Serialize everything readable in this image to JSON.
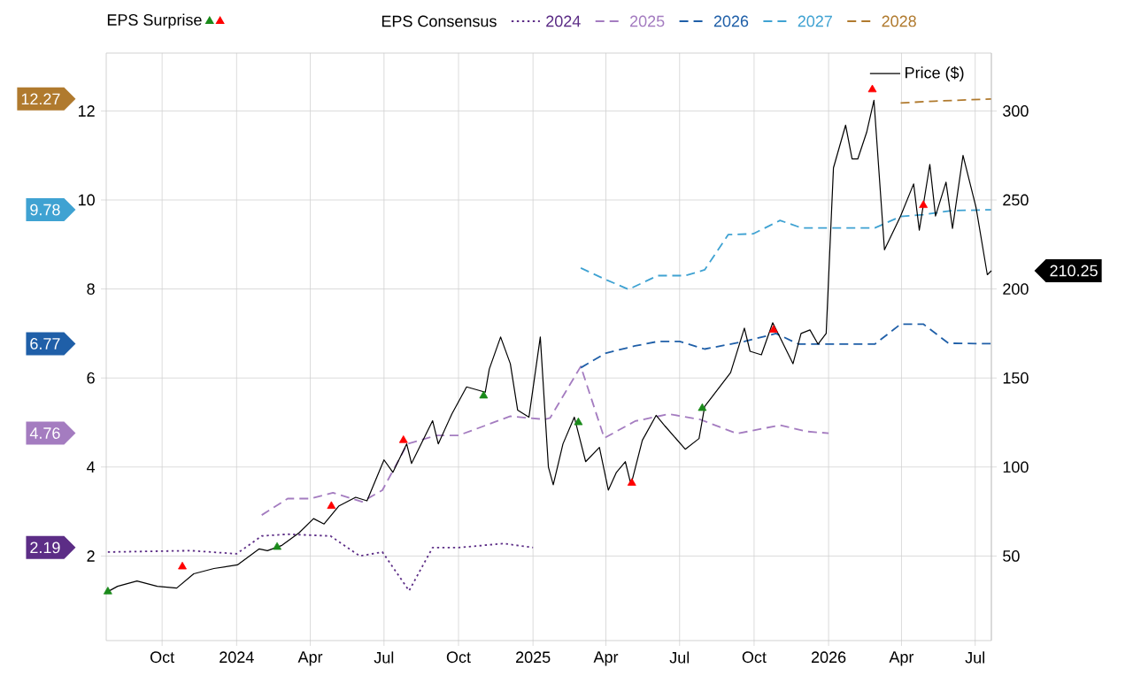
{
  "chart_data": {
    "type": "line",
    "xlim": [
      "2023-07-24",
      "2026-07-21"
    ],
    "xticks": [
      {
        "value": "2023-10-01",
        "label": "Oct"
      },
      {
        "value": "2024-01-01",
        "label": "2024"
      },
      {
        "value": "2024-04-01",
        "label": "Apr"
      },
      {
        "value": "2024-07-01",
        "label": "Jul"
      },
      {
        "value": "2024-10-01",
        "label": "Oct"
      },
      {
        "value": "2025-01-01",
        "label": "2025"
      },
      {
        "value": "2025-04-01",
        "label": "Apr"
      },
      {
        "value": "2025-07-01",
        "label": "Jul"
      },
      {
        "value": "2025-10-01",
        "label": "Oct"
      },
      {
        "value": "2026-01-01",
        "label": "2026"
      },
      {
        "value": "2026-04-01",
        "label": "Apr"
      },
      {
        "value": "2026-07-01",
        "label": "Jul"
      }
    ],
    "ylim": [
      0.1,
      13.3
    ],
    "yticks": [
      2,
      4,
      6,
      8,
      10,
      12
    ],
    "y2lim": [
      2.5,
      332.5
    ],
    "y2ticks": [
      50,
      100,
      150,
      200,
      250,
      300
    ],
    "grid": true,
    "legend": "top",
    "marker": "none",
    "series": [
      {
        "name": "2024",
        "color": "#5c2d86",
        "line_style": "dotted",
        "x": [
          "2023-07-26",
          "2023-11-06",
          "2024-01-01",
          "2024-02-01",
          "2024-03-04",
          "2024-04-26",
          "2024-06-01",
          "2024-06-29",
          "2024-08-01",
          "2024-08-30",
          "2024-10-01",
          "2024-11-26",
          "2025-01-01"
        ],
        "values": [
          2.09,
          2.12,
          2.05,
          2.45,
          2.49,
          2.45,
          2.0,
          2.09,
          1.22,
          2.19,
          2.19,
          2.28,
          2.19
        ]
      },
      {
        "name": "2025",
        "color": "#a47cc0",
        "line_style": "dashed",
        "x": [
          "2024-02-01",
          "2024-03-04",
          "2024-04-01",
          "2024-04-29",
          "2024-06-04",
          "2024-06-29",
          "2024-07-30",
          "2024-09-04",
          "2024-10-01",
          "2024-12-04",
          "2025-01-15",
          "2025-01-22",
          "2025-03-01",
          "2025-03-30",
          "2025-05-07",
          "2025-06-18",
          "2025-07-26",
          "2025-09-10",
          "2025-11-02",
          "2025-12-04",
          "2026-01-01"
        ],
        "values": [
          2.92,
          3.29,
          3.29,
          3.42,
          3.22,
          3.48,
          4.52,
          4.71,
          4.71,
          5.14,
          5.07,
          5.1,
          6.26,
          4.65,
          5.03,
          5.19,
          5.07,
          4.75,
          4.94,
          4.8,
          4.76
        ]
      },
      {
        "name": "2026",
        "color": "#1f5fa8",
        "line_style": "dashed",
        "x": [
          "2025-03-01",
          "2025-04-01",
          "2025-05-07",
          "2025-06-04",
          "2025-07-01",
          "2025-08-01",
          "2025-09-19",
          "2025-10-28",
          "2025-11-25",
          "2026-02-27",
          "2026-03-31",
          "2026-04-28",
          "2026-05-29",
          "2026-07-21"
        ],
        "values": [
          6.23,
          6.56,
          6.72,
          6.82,
          6.82,
          6.65,
          6.82,
          7.0,
          6.76,
          6.76,
          7.21,
          7.21,
          6.78,
          6.77
        ]
      },
      {
        "name": "2027",
        "color": "#3fa2d2",
        "line_style": "dashed",
        "x": [
          "2025-03-01",
          "2025-04-01",
          "2025-04-29",
          "2025-06-04",
          "2025-07-08",
          "2025-08-01",
          "2025-08-30",
          "2025-09-30",
          "2025-11-02",
          "2025-11-29",
          "2026-02-27",
          "2026-03-31",
          "2026-04-28",
          "2026-06-02",
          "2026-07-21"
        ],
        "values": [
          8.47,
          8.21,
          7.99,
          8.3,
          8.3,
          8.43,
          9.22,
          9.24,
          9.54,
          9.37,
          9.37,
          9.63,
          9.67,
          9.76,
          9.78
        ]
      },
      {
        "name": "2028",
        "color": "#b07a2e",
        "line_style": "dashed",
        "x": [
          "2026-03-31",
          "2026-05-12",
          "2026-07-21"
        ],
        "values": [
          12.18,
          12.22,
          12.27
        ]
      },
      {
        "name": "Price ($)",
        "color": "#000000",
        "line_style": "solid",
        "axis": "y2",
        "x": [
          "2023-07-26",
          "2023-08-07",
          "2023-08-31",
          "2023-09-25",
          "2023-10-19",
          "2023-11-09",
          "2023-12-04",
          "2024-01-02",
          "2024-01-29",
          "2024-02-08",
          "2024-02-26",
          "2024-03-18",
          "2024-04-05",
          "2024-04-18",
          "2024-05-06",
          "2024-05-27",
          "2024-06-10",
          "2024-07-01",
          "2024-07-12",
          "2024-07-29",
          "2024-08-04",
          "2024-08-30",
          "2024-09-06",
          "2024-09-23",
          "2024-10-11",
          "2024-11-03",
          "2024-11-08",
          "2024-11-22",
          "2024-12-04",
          "2024-12-13",
          "2024-12-27",
          "2025-01-10",
          "2025-01-20",
          "2025-01-26",
          "2025-02-07",
          "2025-02-21",
          "2025-03-07",
          "2025-03-24",
          "2025-04-04",
          "2025-04-14",
          "2025-04-25",
          "2025-05-02",
          "2025-05-16",
          "2025-06-02",
          "2025-06-13",
          "2025-07-08",
          "2025-07-25",
          "2025-08-01",
          "2025-09-02",
          "2025-09-19",
          "2025-09-26",
          "2025-10-10",
          "2025-10-24",
          "2025-11-04",
          "2025-11-18",
          "2025-11-28",
          "2025-12-09",
          "2025-12-19",
          "2025-12-29",
          "2026-01-07",
          "2026-01-22",
          "2026-01-30",
          "2026-02-06",
          "2026-02-17",
          "2026-02-26",
          "2026-03-11",
          "2026-03-31",
          "2026-04-16",
          "2026-04-23",
          "2026-05-06",
          "2026-05-13",
          "2026-05-26",
          "2026-06-03",
          "2026-06-16",
          "2026-07-02",
          "2026-07-16",
          "2026-07-21"
        ],
        "values": [
          30,
          33,
          36,
          33,
          32,
          40,
          43,
          45,
          54,
          53,
          56,
          63,
          71,
          68,
          78,
          83,
          81,
          104,
          97,
          113,
          102,
          126,
          113,
          130,
          145,
          142,
          155,
          173,
          158,
          132,
          128,
          173,
          100,
          90,
          113,
          128,
          103,
          111,
          87,
          97,
          103,
          90,
          115,
          129,
          123,
          110,
          116,
          134,
          153,
          178,
          165,
          163,
          181,
          171,
          158,
          175,
          177,
          169,
          175,
          268,
          292,
          273,
          273,
          288,
          306,
          222,
          241,
          259,
          233,
          270,
          241,
          260,
          234,
          275,
          246,
          208,
          210.25
        ]
      },
      {
        "type": "scatter",
        "marker": "triangle",
        "color": "#1a8a1a",
        "axis": "y2",
        "x": [
          "2023-07-26",
          "2024-02-20",
          "2024-11-01",
          "2025-02-26",
          "2025-07-29"
        ],
        "values": [
          30,
          55,
          140,
          125,
          133
        ]
      },
      {
        "type": "scatter",
        "marker": "triangle",
        "color": "#ff0000",
        "axis": "y2",
        "x": [
          "2023-10-26",
          "2024-04-27",
          "2024-07-25",
          "2025-05-03",
          "2025-10-25",
          "2026-02-24",
          "2026-04-28"
        ],
        "values": [
          44,
          78,
          115,
          91,
          177,
          312,
          247
        ]
      }
    ],
    "annotations": [
      "EPS Surprise",
      "EPS Consensus",
      "2.19",
      "4.76",
      "6.77",
      "9.78",
      "12.27",
      "210.25"
    ]
  }
}
